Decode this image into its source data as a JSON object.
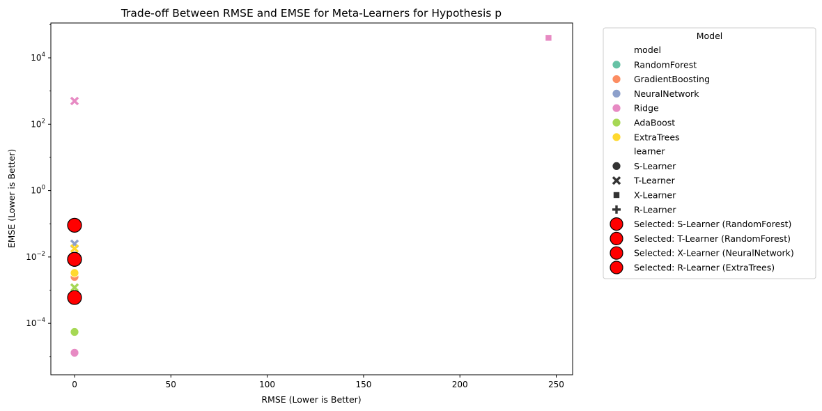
{
  "chart_data": {
    "type": "scatter",
    "title": "Trade-off Between RMSE and EMSE for Meta-Learners for Hypothesis p",
    "xlabel": "RMSE (Lower is Better)",
    "ylabel": "EMSE (Lower is Better)",
    "xlim": [
      -12.3,
      258.5
    ],
    "ylim_log10": [
      -5.55,
      5.05
    ],
    "yscale": "log",
    "xticks": [
      0,
      50,
      100,
      150,
      200,
      250
    ],
    "yticks": [
      {
        "exp": -4,
        "label": "10",
        "sup": "−4"
      },
      {
        "exp": -2,
        "label": "10",
        "sup": "−2"
      },
      {
        "exp": 0,
        "label": "10",
        "sup": "0"
      },
      {
        "exp": 2,
        "label": "10",
        "sup": "2"
      },
      {
        "exp": 4,
        "label": "10",
        "sup": "4"
      }
    ],
    "grid": false,
    "legend": {
      "title": "Model",
      "position": "outside-right",
      "model_header": "model",
      "learner_header": "learner",
      "models": [
        {
          "name": "RandomForest",
          "color": "#66c2a5"
        },
        {
          "name": "GradientBoosting",
          "color": "#fc8d62"
        },
        {
          "name": "NeuralNetwork",
          "color": "#8da0cb"
        },
        {
          "name": "Ridge",
          "color": "#e78ac3"
        },
        {
          "name": "AdaBoost",
          "color": "#a6d854"
        },
        {
          "name": "ExtraTrees",
          "color": "#ffd92f"
        }
      ],
      "learners": [
        {
          "name": "S-Learner",
          "marker": "circle"
        },
        {
          "name": "T-Learner",
          "marker": "x"
        },
        {
          "name": "X-Learner",
          "marker": "square"
        },
        {
          "name": "R-Learner",
          "marker": "plus"
        }
      ],
      "selected": [
        "Selected: S-Learner (RandomForest)",
        "Selected: T-Learner (RandomForest)",
        "Selected: X-Learner (NeuralNetwork)",
        "Selected: R-Learner (ExtraTrees)"
      ]
    },
    "points": [
      {
        "model": "Ridge",
        "learner": "X-Learner",
        "x": 246,
        "y": 40000
      },
      {
        "model": "Ridge",
        "learner": "T-Learner",
        "x": 0,
        "y": 500
      },
      {
        "model": "NeuralNetwork",
        "learner": "T-Learner",
        "x": 0,
        "y": 0.025
      },
      {
        "model": "ExtraTrees",
        "learner": "T-Learner",
        "x": 0,
        "y": 0.018
      },
      {
        "model": "GradientBoosting",
        "learner": "S-Learner",
        "x": 0,
        "y": 0.0025
      },
      {
        "model": "ExtraTrees",
        "learner": "S-Learner",
        "x": 0,
        "y": 0.0033
      },
      {
        "model": "AdaBoost",
        "learner": "T-Learner",
        "x": 0,
        "y": 0.0012
      },
      {
        "model": "AdaBoost",
        "learner": "S-Learner",
        "x": 0,
        "y": 5.5e-05
      },
      {
        "model": "Ridge",
        "learner": "S-Learner",
        "x": 0,
        "y": 1.3e-05
      }
    ],
    "selected_points": [
      {
        "label": "Selected: S-Learner (RandomForest)",
        "x": 0,
        "y": 0.0085
      },
      {
        "label": "Selected: T-Learner (RandomForest)",
        "x": 0,
        "y": 0.09
      },
      {
        "label": "Selected: X-Learner (NeuralNetwork)",
        "x": 0,
        "y": 0.0085
      },
      {
        "label": "Selected: R-Learner (ExtraTrees)",
        "x": 0,
        "y": 0.0006
      }
    ],
    "colors": {
      "selected_fill": "#ff0000",
      "selected_edge": "#000000",
      "learner_marker": "#333333"
    }
  }
}
